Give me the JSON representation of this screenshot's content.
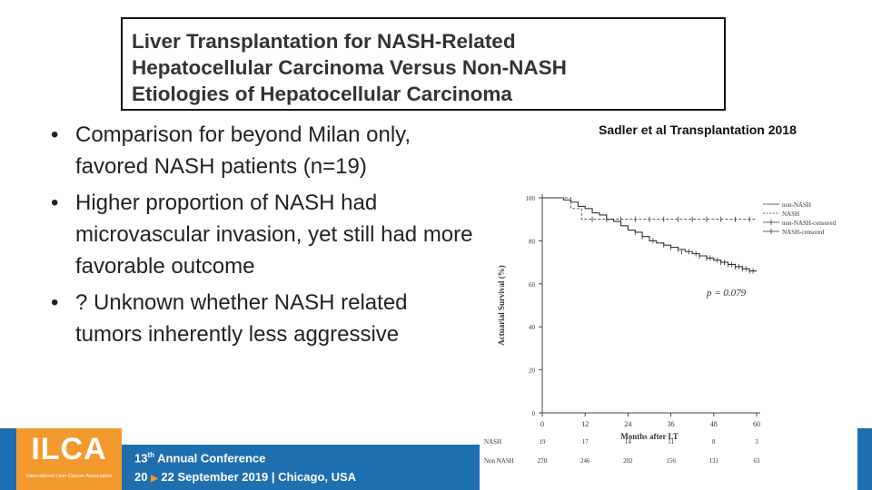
{
  "title": {
    "line1": "Liver Transplantation for NASH-Related",
    "line2": "Hepatocellular Carcinoma Versus Non-NASH",
    "line3": "Etiologies of Hepatocellular Carcinoma"
  },
  "citation": "Sadler et al Transplantation 2018",
  "bullets": [
    "Comparison for beyond Milan only, favored NASH patients (n=19)",
    "Higher proportion of NASH had microvascular invasion, yet still had more favorable outcome",
    "? Unknown whether NASH related tumors inherently less aggressive"
  ],
  "bullet_marker": "•",
  "footer": {
    "logo": "ILCA",
    "logo_sub": "International Liver Cancer Association",
    "conf_number": "13",
    "conf_suffix": "th",
    "conf_name": "Annual Conference",
    "dates_start": "20",
    "dates_rest": "22 September 2019",
    "separator": "|",
    "location": "Chicago, USA",
    "brand_orange": "#f29a2e",
    "brand_blue": "#1e6fb0"
  },
  "chart_data": {
    "type": "line",
    "ylabel": "Actuarial Survival (%)",
    "xlabel": "Months after LT",
    "xlim": [
      0,
      60
    ],
    "ylim": [
      0,
      100
    ],
    "x_ticks": [
      0,
      12,
      24,
      36,
      48,
      60
    ],
    "y_ticks": [
      0,
      20,
      40,
      60,
      80,
      100
    ],
    "annotation": "p = 0.079",
    "legend": [
      "non-NASH",
      "NASH",
      "non-NASH-censored",
      "NASH-censored"
    ],
    "series": [
      {
        "name": "non-NASH",
        "style": "solid",
        "x": [
          0,
          3,
          5,
          6,
          8,
          10,
          12,
          14,
          16,
          18,
          20,
          22,
          24,
          26,
          28,
          30,
          32,
          34,
          36,
          38,
          40,
          42,
          44,
          46,
          48,
          50,
          52,
          54,
          56,
          58,
          60
        ],
        "y": [
          100,
          100,
          100,
          99,
          98,
          96,
          95,
          93,
          92,
          90,
          89,
          87,
          85,
          84,
          82,
          80,
          79,
          78,
          77,
          76,
          75,
          74,
          73,
          72,
          71,
          70,
          69,
          68,
          67,
          66,
          66
        ]
      },
      {
        "name": "NASH",
        "style": "dashed",
        "x": [
          0,
          8,
          8,
          11,
          11,
          60
        ],
        "y": [
          100,
          100,
          95,
          95,
          90,
          90
        ]
      }
    ],
    "censored_marks": {
      "non-NASH-censored": {
        "x": [
          26,
          28,
          31,
          34,
          36,
          38,
          39,
          41,
          43,
          44,
          46,
          47,
          49,
          50,
          51,
          52,
          53,
          54,
          55,
          56,
          57,
          58,
          59
        ],
        "y": [
          84,
          82,
          80,
          78,
          77,
          76,
          75,
          75,
          74,
          73,
          72,
          72,
          71,
          70,
          70,
          69,
          69,
          68,
          68,
          67,
          67,
          66,
          66
        ]
      },
      "NASH-censored": {
        "x": [
          14,
          18,
          22,
          26,
          30,
          34,
          38,
          42,
          46,
          50,
          54,
          58
        ],
        "y": [
          90,
          90,
          90,
          90,
          90,
          90,
          90,
          90,
          90,
          90,
          90,
          90
        ]
      }
    },
    "risk_table": {
      "rows": [
        {
          "label": "NASH",
          "values": [
            "19",
            "17",
            "14",
            "11",
            "8",
            "3"
          ]
        },
        {
          "label": "Non NASH",
          "values": [
            "270",
            "246",
            "202",
            "156",
            "131",
            "63"
          ]
        }
      ]
    }
  }
}
